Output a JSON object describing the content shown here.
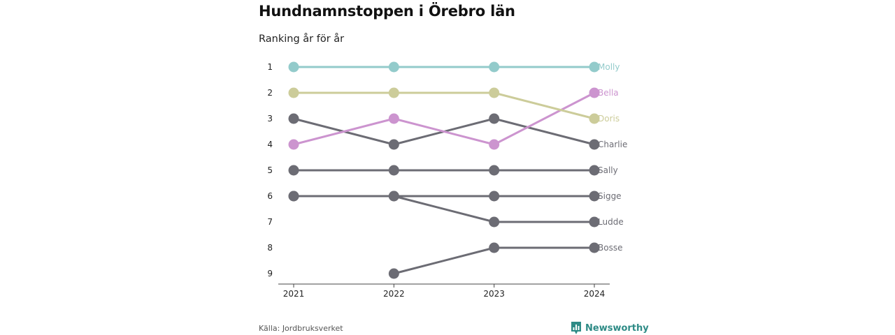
{
  "title": "Hundnamnstoppen i Örebro län",
  "subtitle": "Ranking år för år",
  "source": "Källa: Jordbruksverket",
  "brand": {
    "name": "Newsworthy",
    "icon": "bar-chart-logo-icon",
    "color": "#2e8b86"
  },
  "chart_data": {
    "type": "line",
    "title": "Hundnamnstoppen i Örebro län",
    "subtitle": "Ranking år för år",
    "x": [
      "2021",
      "2022",
      "2023",
      "2024"
    ],
    "y_ticks": [
      "1",
      "2",
      "3",
      "4",
      "5",
      "6",
      "7",
      "8",
      "9"
    ],
    "ylim": [
      1,
      9
    ],
    "y_reversed": true,
    "grid": false,
    "series": [
      {
        "name": "Molly",
        "values": [
          1,
          1,
          1,
          1
        ],
        "color": "#93cbcb"
      },
      {
        "name": "Bella",
        "values": [
          4,
          3,
          4,
          2
        ],
        "color": "#cc94cf"
      },
      {
        "name": "Doris",
        "values": [
          2,
          2,
          2,
          3
        ],
        "color": "#cccc9a"
      },
      {
        "name": "Charlie",
        "values": [
          3,
          4,
          3,
          4
        ],
        "color": "#6c6c74"
      },
      {
        "name": "Sally",
        "values": [
          5,
          5,
          5,
          5
        ],
        "color": "#6c6c74"
      },
      {
        "name": "Sigge",
        "values": [
          6,
          6,
          6,
          6
        ],
        "color": "#6c6c74"
      },
      {
        "name": "Ludde",
        "values": [
          6,
          6,
          7,
          7
        ],
        "color": "#6c6c74"
      },
      {
        "name": "Bosse",
        "values": [
          null,
          9,
          8,
          8
        ],
        "color": "#6c6c74"
      }
    ]
  }
}
